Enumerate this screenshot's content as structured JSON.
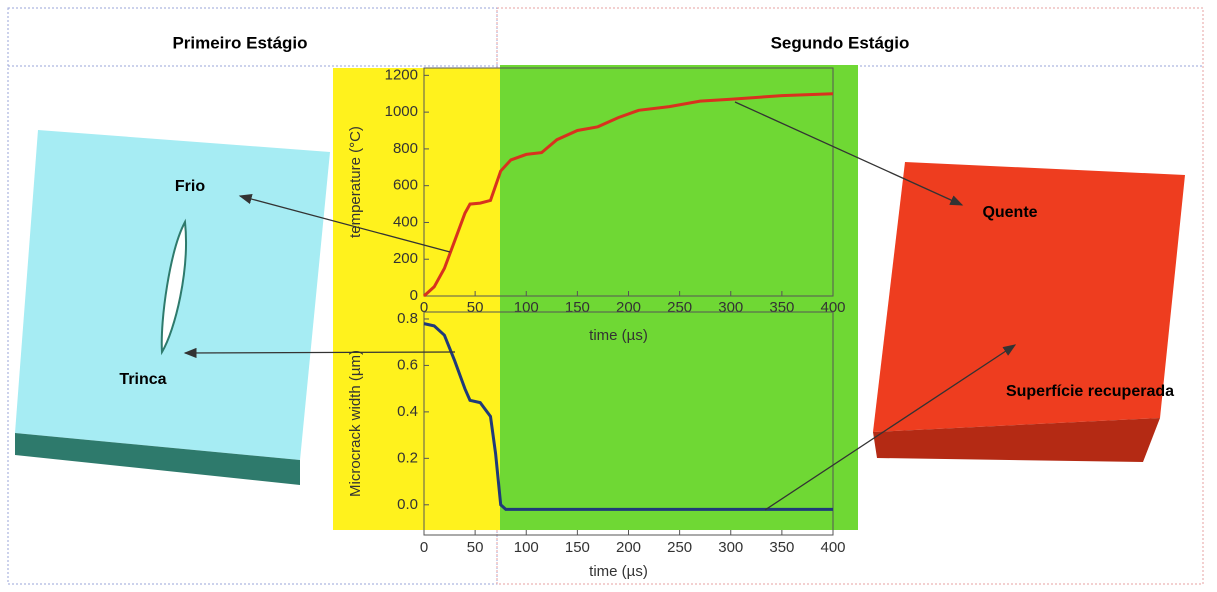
{
  "header": {
    "left": "Primeiro Estágio",
    "right": "Segundo Estágio"
  },
  "labels": {
    "cold": "Frio",
    "crack": "Trinca",
    "hot": "Quente",
    "recovered": "Superfície recuperada"
  },
  "chart_data": [
    {
      "type": "line",
      "y_label": "temperature (°C)",
      "x_label": "time (µs)",
      "color": "#d8321e",
      "x": [
        0,
        10,
        20,
        30,
        40,
        45,
        55,
        65,
        75,
        85,
        100,
        115,
        130,
        150,
        170,
        190,
        210,
        240,
        270,
        300,
        350,
        400
      ],
      "values": [
        0,
        50,
        150,
        300,
        450,
        500,
        505,
        520,
        680,
        740,
        770,
        780,
        850,
        900,
        920,
        970,
        1010,
        1030,
        1060,
        1070,
        1090,
        1100
      ],
      "xlim": [
        0,
        400
      ],
      "xticks": [
        0,
        50,
        100,
        150,
        200,
        250,
        300,
        350,
        400
      ],
      "ylim": [
        0,
        1240
      ],
      "yticks": [
        0,
        200,
        400,
        600,
        800,
        1000,
        1200
      ]
    },
    {
      "type": "line",
      "y_label": "Microcrack width (µm)",
      "x_label": "time (µs)",
      "color": "#1f3a7a",
      "x": [
        0,
        10,
        20,
        30,
        40,
        45,
        55,
        65,
        70,
        75,
        80,
        400
      ],
      "values": [
        0.78,
        0.77,
        0.73,
        0.62,
        0.5,
        0.45,
        0.44,
        0.38,
        0.22,
        0,
        -0.02,
        -0.02
      ],
      "xlim": [
        0,
        400
      ],
      "xticks": [
        0,
        50,
        100,
        150,
        200,
        250,
        300,
        350,
        400
      ],
      "ylim": [
        -0.13,
        0.83
      ],
      "yticks": [
        {
          "value": 0,
          "label": "0.0"
        },
        0.2,
        0.4,
        0.6,
        0.8
      ]
    }
  ]
}
